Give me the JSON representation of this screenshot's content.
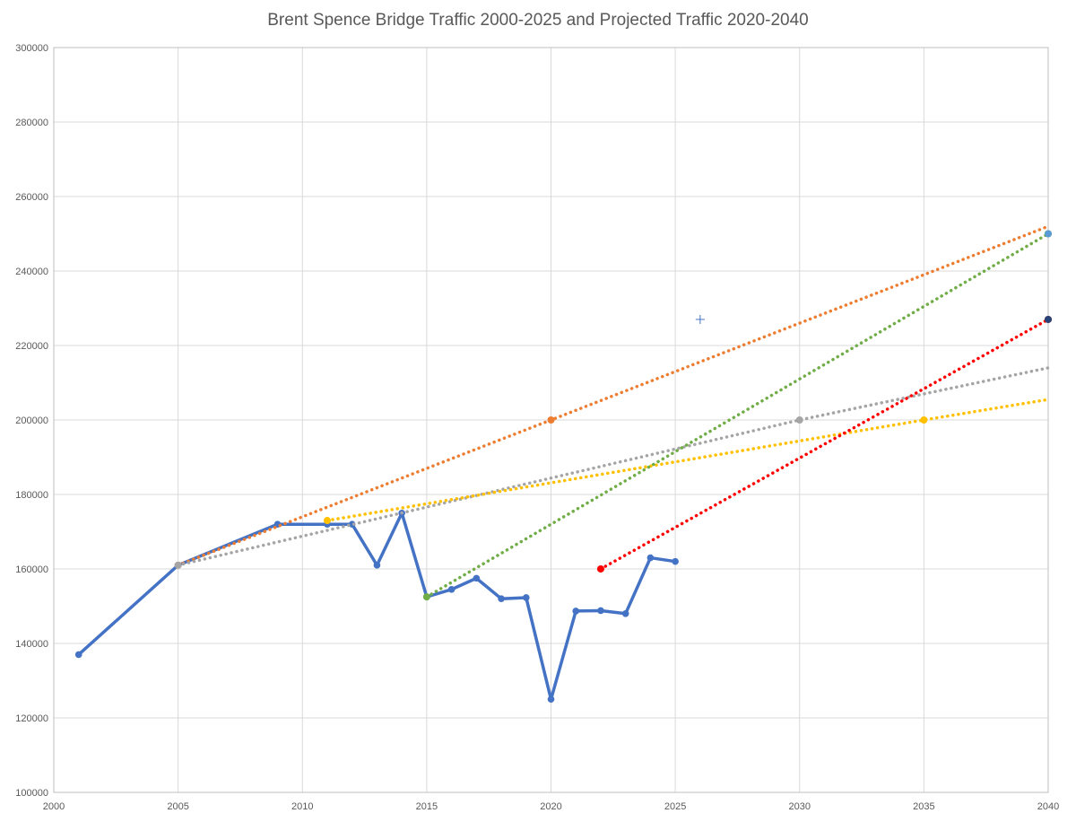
{
  "chart_data": {
    "type": "scatter",
    "title": "Brent Spence Bridge Traffic 2000-2025 and Projected Traffic 2020-2040",
    "xlabel": "",
    "ylabel": "",
    "xlim": [
      2000,
      2040
    ],
    "ylim": [
      100000,
      300000
    ],
    "x_ticks": [
      2000,
      2005,
      2010,
      2015,
      2020,
      2025,
      2030,
      2035,
      2040
    ],
    "y_ticks": [
      100000,
      120000,
      140000,
      160000,
      180000,
      200000,
      220000,
      240000,
      260000,
      280000,
      300000
    ],
    "grid": true,
    "legend": "none",
    "series": [
      {
        "color": "#4472C4",
        "style": "solid-line-markers",
        "points": [
          [
            2001,
            137000
          ],
          [
            2005,
            161000
          ],
          [
            2009,
            172000
          ],
          [
            2011,
            172000
          ],
          [
            2012,
            172000
          ],
          [
            2013,
            161000
          ],
          [
            2014,
            175000
          ],
          [
            2015,
            152500
          ],
          [
            2016,
            154500
          ],
          [
            2017,
            157500
          ],
          [
            2018,
            152000
          ],
          [
            2019,
            152300
          ],
          [
            2020,
            125000
          ],
          [
            2021,
            148700
          ],
          [
            2022,
            148800
          ],
          [
            2023,
            148000
          ],
          [
            2024,
            163000
          ],
          [
            2025,
            162000
          ]
        ]
      },
      {
        "color": "#ED7D31",
        "style": "dotted-trend",
        "points": [
          [
            2005,
            161000
          ],
          [
            2020,
            200000
          ],
          [
            2040,
            252000
          ]
        ]
      },
      {
        "color": "#A5A5A5",
        "style": "dotted-trend",
        "points": [
          [
            2005,
            161000
          ],
          [
            2030,
            200000
          ],
          [
            2040,
            214000
          ]
        ]
      },
      {
        "color": "#FFC000",
        "style": "dotted-trend",
        "points": [
          [
            2011,
            173000
          ],
          [
            2035,
            200000
          ],
          [
            2040,
            205500
          ]
        ]
      },
      {
        "color": "#70AD47",
        "style": "dotted-trend",
        "points": [
          [
            2015,
            152500
          ],
          [
            2040,
            250000
          ]
        ]
      },
      {
        "color": "#FF0000",
        "style": "dotted-trend",
        "points": [
          [
            2022,
            160000
          ],
          [
            2040,
            227000
          ]
        ]
      }
    ],
    "annotations": [
      {
        "type": "cross-marker",
        "x": 2026,
        "y": 227000,
        "color": "#4472C4"
      }
    ]
  }
}
